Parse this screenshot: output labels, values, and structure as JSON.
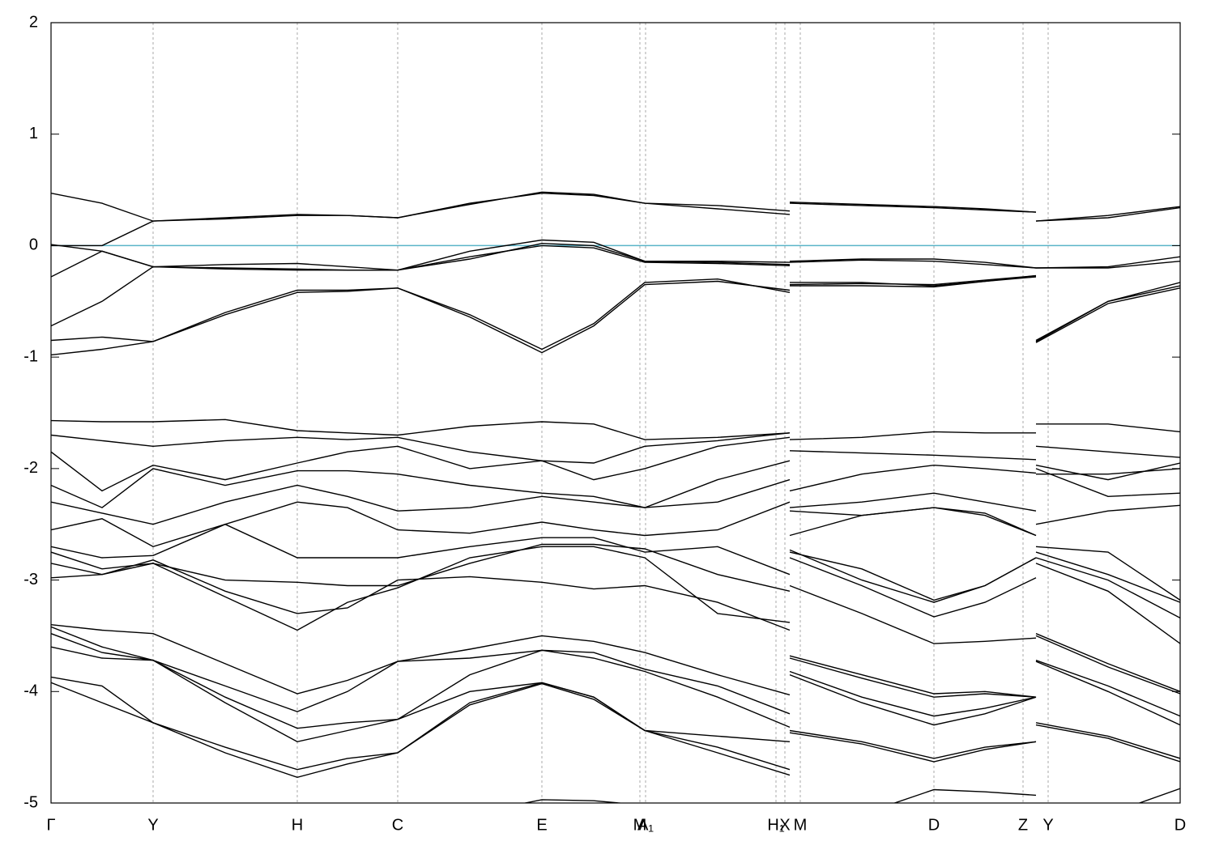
{
  "chart_data": {
    "type": "line",
    "xlim": [
      0,
      1394
    ],
    "ylim": [
      -5,
      2
    ],
    "yticks": [
      -5,
      -4,
      -3,
      -2,
      -1,
      0,
      1,
      2
    ],
    "xticks": [
      {
        "value": 0,
        "label": "Γ"
      },
      {
        "value": 126,
        "label": "Y"
      },
      {
        "value": 304,
        "label": "H"
      },
      {
        "value": 428,
        "label": "C"
      },
      {
        "value": 606,
        "label": "E"
      },
      {
        "value": 727,
        "label": "M"
      },
      {
        "value": 734,
        "label": "A₁"
      },
      {
        "value": 895,
        "label": "H₁"
      },
      {
        "value": 906,
        "label": "X"
      },
      {
        "value": 925,
        "label": "M"
      },
      {
        "value": 1090,
        "label": "D"
      },
      {
        "value": 1200,
        "label": "Z"
      },
      {
        "value": 1231,
        "label": "Y"
      },
      {
        "value": 1394,
        "label": "D"
      }
    ],
    "grid": true,
    "fermi_level": 0,
    "fermi_color": "#5ab4c8",
    "x": [
      0,
      63,
      126,
      215,
      304,
      366,
      428,
      517,
      606,
      670,
      733,
      823,
      912,
      912,
      912,
      1001,
      1090,
      1153,
      1216,
      1216,
      1216,
      1305,
      1394
    ],
    "series": [
      {
        "color": "#000000",
        "values": [
          0.47,
          0.38,
          0.22,
          0.25,
          0.28,
          0.27,
          0.25,
          0.38,
          0.47,
          0.45,
          0.38,
          0.33,
          0.28,
          null,
          0.39,
          0.37,
          0.35,
          0.33,
          0.3,
          null,
          0.22,
          0.27,
          0.35
        ]
      },
      {
        "color": "#000000",
        "values": [
          0.0,
          0.0,
          0.22,
          0.24,
          0.27,
          0.27,
          0.25,
          0.37,
          0.48,
          0.46,
          0.38,
          0.36,
          0.31,
          null,
          0.38,
          0.36,
          0.34,
          0.32,
          0.3,
          null,
          0.22,
          0.25,
          0.34
        ]
      },
      {
        "color": "#000000",
        "values": [
          -0.28,
          -0.05,
          -0.19,
          -0.17,
          -0.16,
          -0.19,
          -0.22,
          -0.05,
          0.05,
          0.03,
          -0.14,
          -0.14,
          -0.15,
          null,
          -0.14,
          -0.12,
          -0.12,
          -0.15,
          -0.2,
          null,
          -0.2,
          -0.19,
          -0.1
        ]
      },
      {
        "color": "#000000",
        "values": [
          0.01,
          -0.05,
          -0.19,
          -0.21,
          -0.22,
          -0.22,
          -0.22,
          -0.1,
          0.0,
          -0.02,
          -0.15,
          -0.16,
          -0.18,
          null,
          -0.15,
          -0.13,
          -0.14,
          -0.17,
          -0.2,
          null,
          -0.2,
          -0.2,
          -0.14
        ]
      },
      {
        "color": "#000000",
        "values": [
          -0.72,
          -0.5,
          -0.19,
          -0.2,
          -0.21,
          -0.22,
          -0.22,
          -0.12,
          0.02,
          0.0,
          -0.14,
          -0.15,
          -0.17,
          null,
          -0.33,
          -0.33,
          -0.36,
          -0.32,
          -0.27,
          null,
          -0.86,
          -0.5,
          -0.36
        ]
      },
      {
        "color": "#000000",
        "values": [
          -0.85,
          -0.82,
          -0.86,
          -0.62,
          -0.42,
          -0.41,
          -0.38,
          -0.62,
          -0.93,
          -0.7,
          -0.33,
          -0.3,
          -0.42,
          null,
          -0.35,
          -0.34,
          -0.35,
          -0.31,
          -0.27,
          null,
          -0.85,
          -0.5,
          -0.33
        ]
      },
      {
        "color": "#000000",
        "values": [
          -0.98,
          -0.93,
          -0.86,
          -0.6,
          -0.4,
          -0.4,
          -0.38,
          -0.64,
          -0.96,
          -0.72,
          -0.35,
          -0.32,
          -0.4,
          null,
          -0.36,
          -0.36,
          -0.37,
          -0.32,
          -0.28,
          null,
          -0.87,
          -0.52,
          -0.38
        ]
      },
      {
        "color": "#000000",
        "values": [
          -1.57,
          -1.58,
          -1.58,
          -1.56,
          -1.66,
          -1.68,
          -1.7,
          -1.62,
          -1.58,
          -1.6,
          -1.74,
          -1.72,
          -1.68,
          null,
          -1.74,
          -1.72,
          -1.67,
          -1.68,
          -1.68,
          null,
          -1.6,
          -1.6,
          -1.67
        ]
      },
      {
        "color": "#000000",
        "values": [
          -1.7,
          -1.75,
          -1.8,
          -1.75,
          -1.72,
          -1.74,
          -1.72,
          -1.85,
          -1.93,
          -1.95,
          -1.8,
          -1.75,
          -1.68,
          null,
          -1.84,
          -1.86,
          -1.88,
          -1.9,
          -1.92,
          null,
          -1.8,
          -1.85,
          -1.9
        ]
      },
      {
        "color": "#000000",
        "values": [
          -1.85,
          -2.2,
          -1.97,
          -2.1,
          -1.95,
          -1.85,
          -1.8,
          -2.0,
          -1.93,
          -2.1,
          -2.0,
          -1.8,
          -1.72,
          null,
          -2.2,
          -2.05,
          -1.97,
          -2.0,
          -2.04,
          null,
          -1.97,
          -2.1,
          -1.95
        ]
      },
      {
        "color": "#000000",
        "values": [
          -2.15,
          -2.35,
          -2.0,
          -2.15,
          -2.02,
          -2.02,
          -2.05,
          -2.15,
          -2.22,
          -2.25,
          -2.35,
          -2.1,
          -1.93,
          null,
          -2.35,
          -2.3,
          -2.22,
          -2.3,
          -2.38,
          null,
          -2.0,
          -2.25,
          -2.22
        ]
      },
      {
        "color": "#000000",
        "values": [
          -2.3,
          -2.4,
          -2.5,
          -2.3,
          -2.15,
          -2.25,
          -2.38,
          -2.35,
          -2.25,
          -2.3,
          -2.35,
          -2.3,
          -2.1,
          null,
          -2.38,
          -2.42,
          -2.35,
          -2.4,
          -2.6,
          null,
          -2.5,
          -2.38,
          -2.33
        ]
      },
      {
        "color": "#000000",
        "values": [
          -2.55,
          -2.45,
          -2.7,
          -2.5,
          -2.3,
          -2.35,
          -2.55,
          -2.58,
          -2.48,
          -2.55,
          -2.6,
          -2.55,
          -2.3,
          null,
          -2.6,
          -2.42,
          -2.35,
          -2.42,
          -2.6,
          null,
          -2.05,
          -2.05,
          -2.0
        ]
      },
      {
        "color": "#000000",
        "values": [
          -2.7,
          -2.8,
          -2.78,
          -2.5,
          -2.8,
          -2.8,
          -2.8,
          -2.7,
          -2.62,
          -2.62,
          -2.75,
          -2.7,
          -2.95,
          null,
          -2.75,
          -2.9,
          -3.18,
          -3.05,
          -2.8,
          null,
          -2.7,
          -2.75,
          -3.18
        ]
      },
      {
        "color": "#000000",
        "values": [
          -2.75,
          -2.9,
          -2.85,
          -3.0,
          -3.02,
          -3.05,
          -3.05,
          -2.85,
          -2.68,
          -2.68,
          -2.72,
          -2.95,
          -3.1,
          null,
          -2.8,
          -3.05,
          -3.33,
          -3.2,
          -2.98,
          null,
          -2.8,
          -3.0,
          -3.34
        ]
      },
      {
        "color": "#000000",
        "values": [
          -2.98,
          -2.95,
          -2.82,
          -3.1,
          -3.3,
          -3.25,
          -3.0,
          -2.97,
          -3.02,
          -3.08,
          -3.05,
          -3.2,
          -3.45,
          null,
          -3.05,
          -3.3,
          -3.57,
          -3.55,
          -3.52,
          null,
          -2.85,
          -3.1,
          -3.57
        ]
      },
      {
        "color": "#000000",
        "values": [
          -2.85,
          -2.95,
          -2.85,
          -3.15,
          -3.45,
          -3.2,
          -3.07,
          -2.8,
          -2.7,
          -2.7,
          -2.8,
          -3.3,
          -3.38,
          null,
          -2.73,
          -3.0,
          -3.2,
          -3.05,
          -2.8,
          null,
          -2.75,
          -2.95,
          -3.2
        ]
      },
      {
        "color": "#000000",
        "values": [
          -3.4,
          -3.45,
          -3.48,
          -3.75,
          -4.02,
          -3.9,
          -3.73,
          -3.62,
          -3.5,
          -3.55,
          -3.65,
          -3.85,
          -4.03,
          null,
          -3.68,
          -3.85,
          -4.02,
          -4.0,
          -4.05,
          null,
          -3.48,
          -3.75,
          -4.0
        ]
      },
      {
        "color": "#000000",
        "values": [
          -3.42,
          -3.6,
          -3.72,
          -3.95,
          -4.18,
          -4.0,
          -3.73,
          -3.7,
          -3.63,
          -3.65,
          -3.8,
          -3.95,
          -4.2,
          null,
          -3.7,
          -3.88,
          -4.05,
          -4.02,
          -4.05,
          null,
          -3.5,
          -3.78,
          -4.02
        ]
      },
      {
        "color": "#000000",
        "values": [
          -3.48,
          -3.65,
          -3.72,
          -4.05,
          -4.33,
          -4.28,
          -4.25,
          -3.85,
          -3.63,
          -3.7,
          -3.82,
          -4.05,
          -4.32,
          null,
          -3.82,
          -4.05,
          -4.22,
          -4.15,
          -4.05,
          null,
          -3.72,
          -3.95,
          -4.22
        ]
      },
      {
        "color": "#000000",
        "values": [
          -3.6,
          -3.7,
          -3.72,
          -4.1,
          -4.45,
          -4.35,
          -4.25,
          -4.0,
          -3.92,
          -4.05,
          -4.35,
          -4.4,
          -4.45,
          null,
          -3.85,
          -4.1,
          -4.3,
          -4.2,
          -4.05,
          null,
          -3.73,
          -4.0,
          -4.3
        ]
      },
      {
        "color": "#000000",
        "values": [
          -3.87,
          -3.95,
          -4.28,
          -4.5,
          -4.7,
          -4.6,
          -4.55,
          -4.1,
          -3.92,
          -4.05,
          -4.35,
          -4.5,
          -4.7,
          null,
          -4.35,
          -4.45,
          -4.6,
          -4.5,
          -4.45,
          null,
          -4.28,
          -4.4,
          -4.6
        ]
      },
      {
        "color": "#000000",
        "values": [
          -3.92,
          -4.1,
          -4.28,
          -4.55,
          -4.77,
          -4.65,
          -4.55,
          -4.12,
          -3.93,
          -4.07,
          -4.35,
          -4.55,
          -4.75,
          null,
          -4.37,
          -4.47,
          -4.63,
          -4.52,
          -4.45,
          null,
          -4.3,
          -4.42,
          -4.63
        ]
      },
      {
        "color": "#000000",
        "values": [
          -5.3,
          -5.3,
          -5.3,
          -5.3,
          -5.3,
          -5.3,
          -5.3,
          -5.1,
          -4.97,
          -4.98,
          -5.02,
          -5.2,
          -5.3,
          null,
          -5.3,
          -5.1,
          -4.88,
          -4.9,
          -4.93,
          null,
          -5.3,
          -5.1,
          -4.87
        ]
      }
    ]
  }
}
